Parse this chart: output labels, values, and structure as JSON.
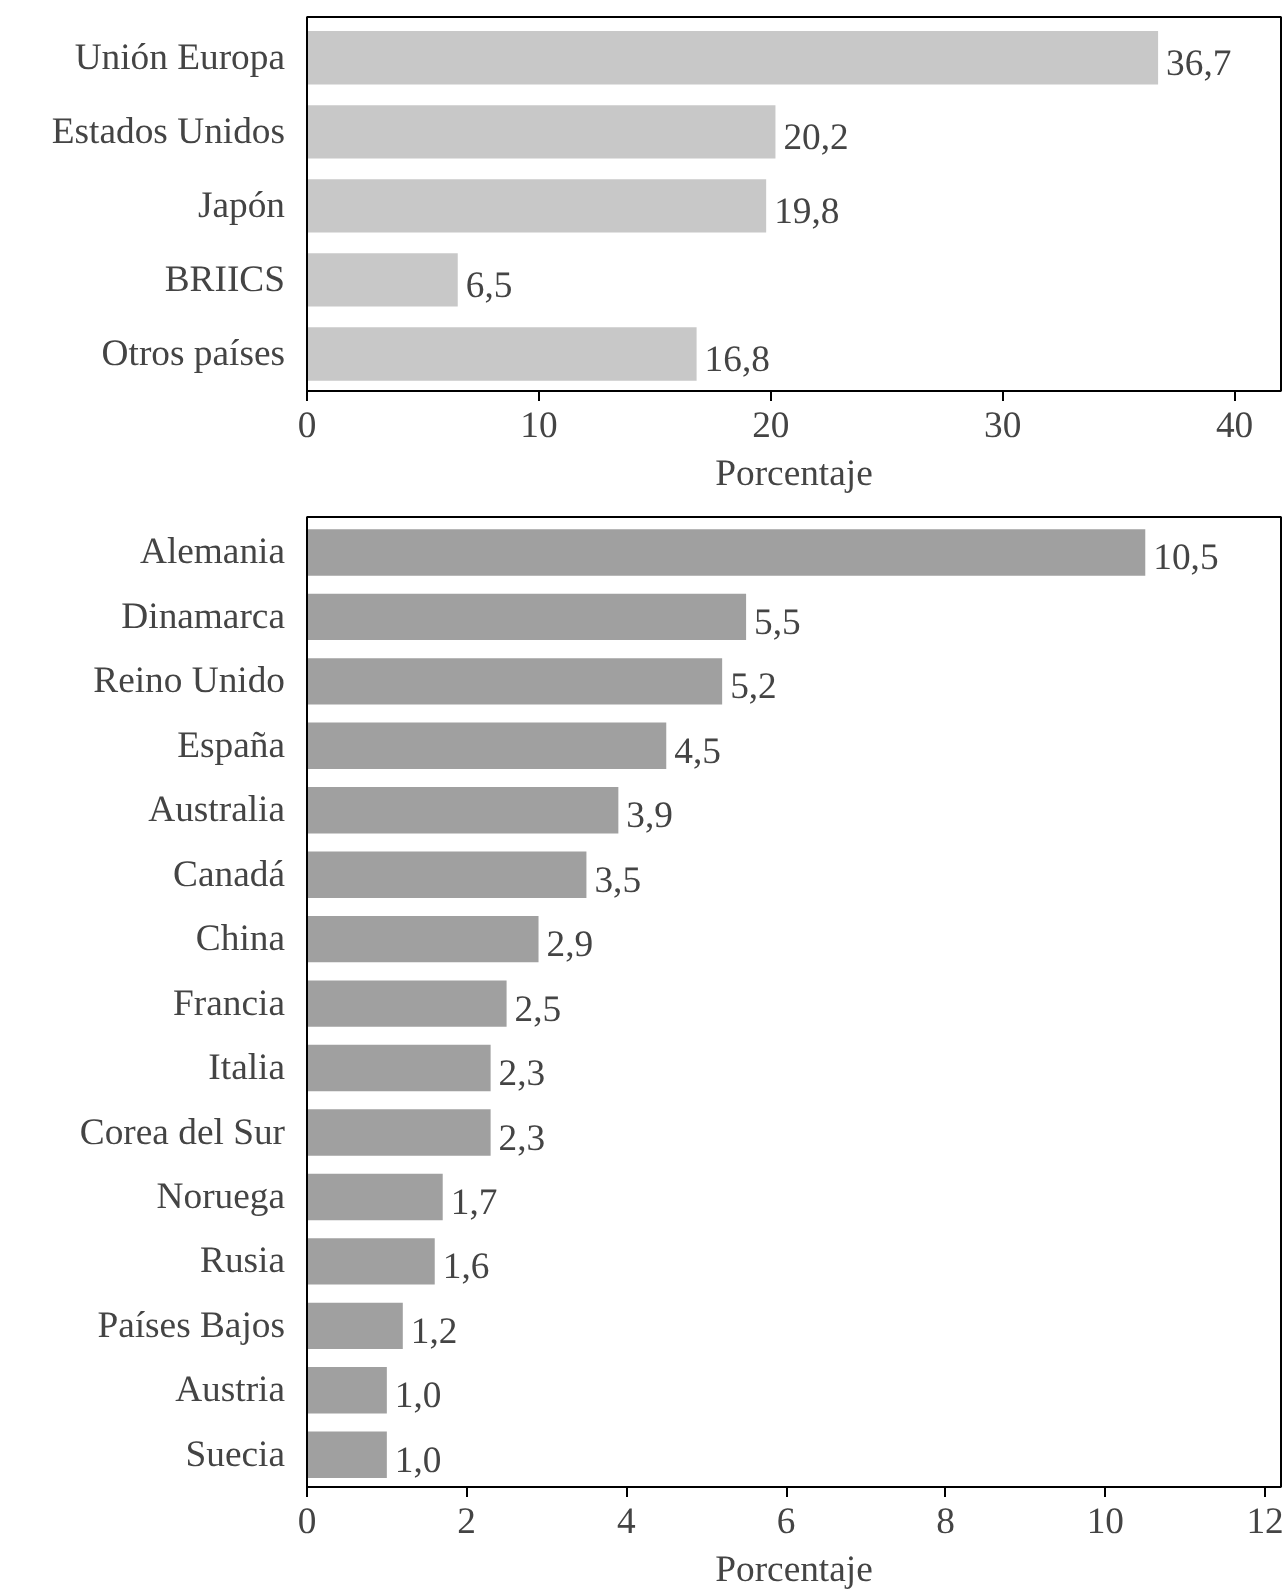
{
  "chart_data": [
    {
      "type": "bar",
      "orientation": "horizontal",
      "xlabel": "Porcentaje",
      "categories": [
        "Unión Europa",
        "Estados Unidos",
        "Japón",
        "BRIICS",
        "Otros países"
      ],
      "values": [
        36.7,
        20.2,
        19.8,
        6.5,
        16.8
      ],
      "value_labels": [
        "36,7",
        "20,2",
        "19,8",
        "6,5",
        "16,8"
      ],
      "color": "#c8c8c8",
      "xlim": [
        0,
        42
      ],
      "xticks": [
        0,
        10,
        20,
        30,
        40
      ],
      "grid": false
    },
    {
      "type": "bar",
      "orientation": "horizontal",
      "xlabel": "Porcentaje",
      "categories": [
        "Alemania",
        "Dinamarca",
        "Reino Unido",
        "España",
        "Australia",
        "Canadá",
        "China",
        "Francia",
        "Italia",
        "Corea del Sur",
        "Noruega",
        "Rusia",
        "Países Bajos",
        "Austria",
        "Suecia"
      ],
      "values": [
        10.5,
        5.5,
        5.2,
        4.5,
        3.9,
        3.5,
        2.9,
        2.5,
        2.3,
        2.3,
        1.7,
        1.6,
        1.2,
        1.0,
        1.0
      ],
      "value_labels": [
        "10,5",
        "5,5",
        "5,2",
        "4,5",
        "3,9",
        "3,5",
        "2,9",
        "2,5",
        "2,3",
        "2,3",
        "1,7",
        "1,6",
        "1,2",
        "1,0",
        "1,0"
      ],
      "color": "#a0a0a0",
      "xlim": [
        0,
        12.2
      ],
      "xticks": [
        0,
        2,
        4,
        6,
        8,
        10,
        12
      ],
      "grid": false
    }
  ]
}
